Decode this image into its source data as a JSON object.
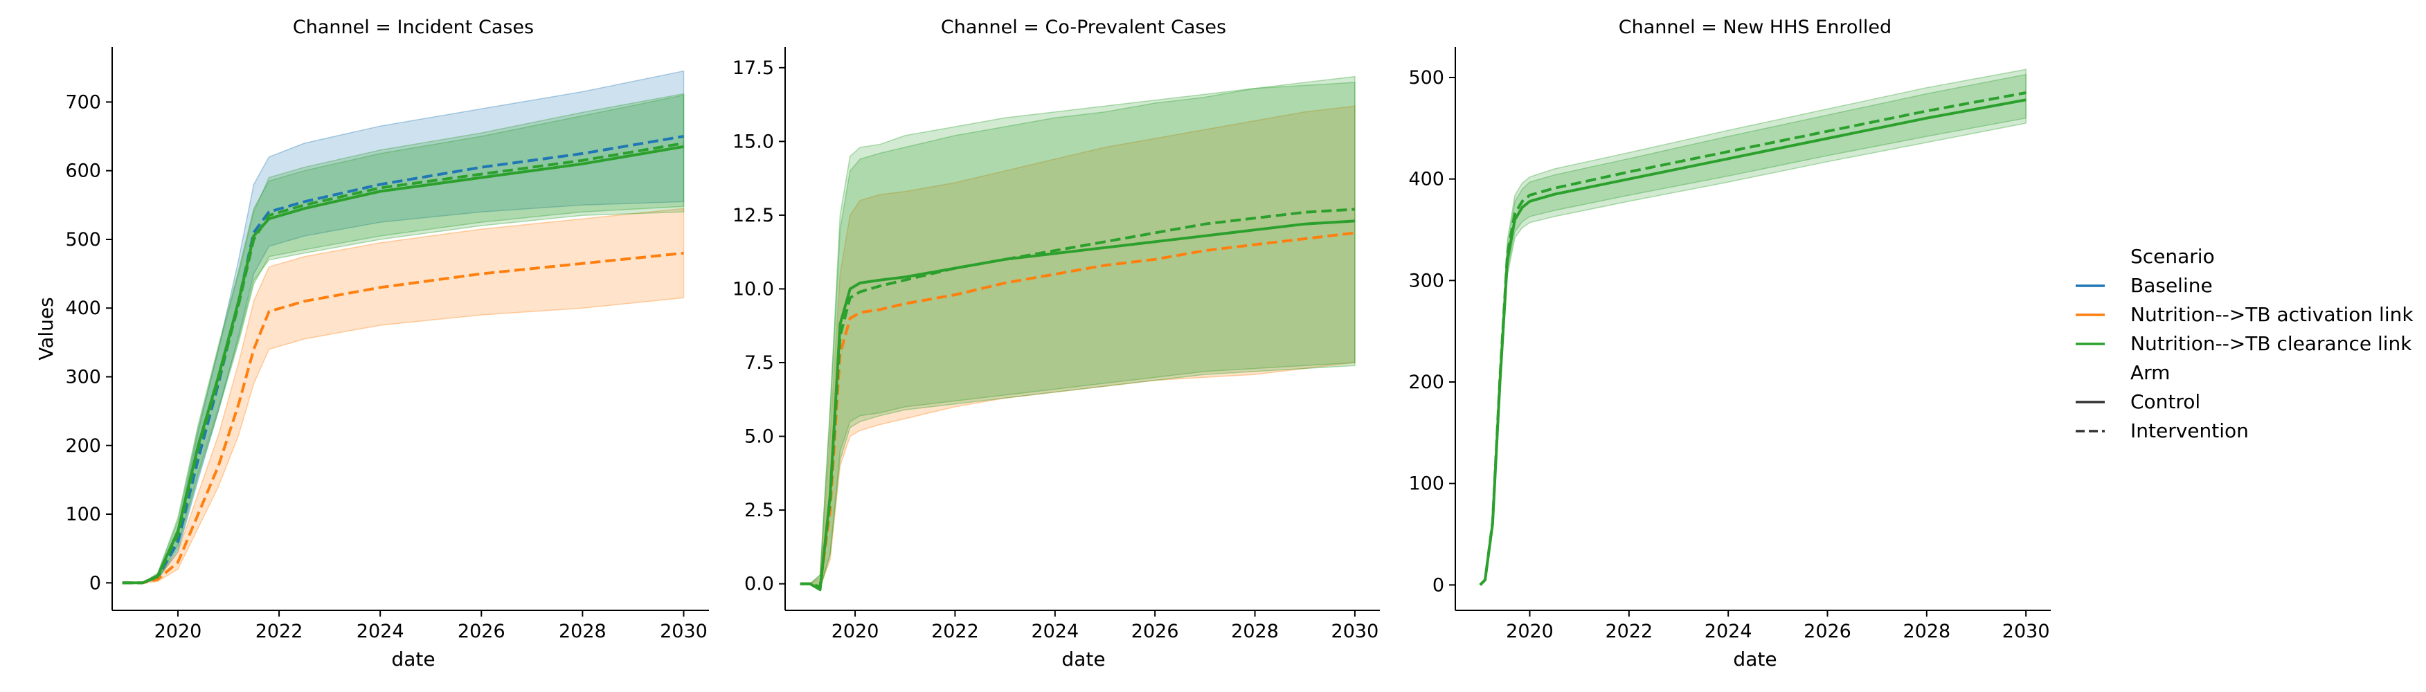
{
  "figure": {
    "legend": {
      "scenario_title": "Scenario",
      "scenario_items": [
        {
          "label": "Baseline",
          "color": "#1f77b4"
        },
        {
          "label": "Nutrition-->TB activation link",
          "color": "#ff7f0e"
        },
        {
          "label": "Nutrition-->TB clearance link",
          "color": "#2ca02c"
        }
      ],
      "arm_title": "Arm",
      "arm_items": [
        {
          "label": "Control",
          "style": "solid"
        },
        {
          "label": "Intervention",
          "style": "dashed"
        }
      ],
      "placement": "right"
    }
  },
  "chart_data": [
    {
      "type": "line",
      "title": "Channel = Incident Cases",
      "xlabel": "date",
      "ylabel": "Values",
      "xlim": [
        2018.7,
        2030.5
      ],
      "ylim": [
        -40,
        780
      ],
      "xticks": [
        2020,
        2022,
        2024,
        2026,
        2028,
        2030
      ],
      "yticks": [
        0,
        100,
        200,
        300,
        400,
        500,
        600,
        700
      ],
      "grid": false,
      "series": [
        {
          "name": "Baseline",
          "arm": "Intervention",
          "color": "#1f77b4",
          "dashed": true,
          "x": [
            2018.9,
            2019.3,
            2019.6,
            2020.0,
            2020.4,
            2020.8,
            2021.2,
            2021.5,
            2021.8,
            2022.5,
            2024,
            2026,
            2028,
            2030
          ],
          "y": [
            0,
            0,
            8,
            60,
            180,
            290,
            410,
            510,
            540,
            555,
            580,
            605,
            625,
            650
          ],
          "lower": [
            0,
            0,
            5,
            45,
            150,
            250,
            360,
            450,
            490,
            505,
            525,
            540,
            550,
            555
          ],
          "upper": [
            0,
            0,
            12,
            80,
            220,
            340,
            470,
            580,
            620,
            640,
            665,
            690,
            715,
            745
          ]
        },
        {
          "name": "Nutrition-->TB activation link",
          "arm": "Intervention",
          "color": "#ff7f0e",
          "dashed": true,
          "x": [
            2018.9,
            2019.3,
            2019.6,
            2020.0,
            2020.4,
            2020.8,
            2021.2,
            2021.5,
            2021.8,
            2022.5,
            2024,
            2026,
            2028,
            2030
          ],
          "y": [
            0,
            0,
            5,
            30,
            100,
            170,
            260,
            340,
            395,
            410,
            430,
            450,
            465,
            480
          ],
          "lower": [
            0,
            0,
            2,
            20,
            80,
            140,
            215,
            290,
            340,
            355,
            375,
            390,
            400,
            415
          ],
          "upper": [
            0,
            0,
            8,
            45,
            130,
            215,
            320,
            410,
            460,
            475,
            495,
            515,
            530,
            545
          ]
        },
        {
          "name": "Nutrition-->TB clearance link",
          "arm": "Control",
          "color": "#2ca02c",
          "dashed": false,
          "x": [
            2018.9,
            2019.3,
            2019.6,
            2020.0,
            2020.4,
            2020.8,
            2021.2,
            2021.5,
            2021.8,
            2022.5,
            2024,
            2026,
            2028,
            2030
          ],
          "y": [
            0,
            0,
            10,
            75,
            200,
            300,
            410,
            505,
            530,
            545,
            570,
            590,
            610,
            635
          ],
          "lower": [
            0,
            0,
            6,
            55,
            160,
            255,
            355,
            440,
            470,
            480,
            500,
            520,
            535,
            540
          ],
          "upper": [
            0,
            0,
            14,
            95,
            230,
            345,
            455,
            545,
            585,
            600,
            625,
            650,
            680,
            710
          ]
        },
        {
          "name": "Nutrition-->TB clearance link",
          "arm": "Intervention",
          "color": "#2ca02c",
          "dashed": true,
          "x": [
            2018.9,
            2019.3,
            2019.6,
            2020.0,
            2020.4,
            2020.8,
            2021.2,
            2021.5,
            2021.8,
            2022.5,
            2024,
            2026,
            2028,
            2030
          ],
          "y": [
            0,
            0,
            9,
            70,
            195,
            295,
            405,
            500,
            535,
            550,
            575,
            595,
            615,
            640
          ],
          "lower": [
            0,
            0,
            5,
            50,
            155,
            250,
            350,
            435,
            475,
            485,
            505,
            525,
            540,
            548
          ],
          "upper": [
            0,
            0,
            13,
            90,
            225,
            340,
            450,
            540,
            590,
            605,
            630,
            655,
            685,
            712
          ]
        }
      ]
    },
    {
      "type": "line",
      "title": "Channel = Co-Prevalent Cases",
      "xlabel": "date",
      "ylabel": "",
      "xlim": [
        2018.6,
        2030.5
      ],
      "ylim": [
        -0.9,
        18.2
      ],
      "xticks": [
        2020,
        2022,
        2024,
        2026,
        2028,
        2030
      ],
      "yticks": [
        0.0,
        2.5,
        5.0,
        7.5,
        10.0,
        12.5,
        15.0,
        17.5
      ],
      "grid": false,
      "series": [
        {
          "name": "Nutrition-->TB activation link",
          "arm": "Intervention",
          "color": "#ff7f0e",
          "dashed": true,
          "x": [
            2018.9,
            2019.1,
            2019.3,
            2019.5,
            2019.7,
            2019.9,
            2020.1,
            2020.5,
            2021,
            2022,
            2023,
            2024,
            2025,
            2026,
            2027,
            2028,
            2029,
            2030
          ],
          "y": [
            0,
            0,
            -0.1,
            2.5,
            7.8,
            9.0,
            9.2,
            9.3,
            9.5,
            9.8,
            10.2,
            10.5,
            10.8,
            11.0,
            11.3,
            11.5,
            11.7,
            11.9
          ],
          "lower": [
            0,
            0,
            -0.1,
            0.8,
            4.0,
            5.0,
            5.2,
            5.4,
            5.6,
            6.0,
            6.3,
            6.5,
            6.7,
            6.9,
            7.0,
            7.1,
            7.3,
            7.5
          ],
          "upper": [
            0,
            0,
            0.2,
            5.0,
            10.5,
            12.5,
            13.0,
            13.2,
            13.3,
            13.6,
            14.0,
            14.4,
            14.8,
            15.1,
            15.4,
            15.7,
            16.0,
            16.2
          ]
        },
        {
          "name": "Nutrition-->TB clearance link",
          "arm": "Control",
          "color": "#2ca02c",
          "dashed": false,
          "x": [
            2018.9,
            2019.1,
            2019.3,
            2019.5,
            2019.7,
            2019.9,
            2020.1,
            2020.5,
            2021,
            2022,
            2023,
            2024,
            2025,
            2026,
            2027,
            2028,
            2029,
            2030
          ],
          "y": [
            0,
            0,
            -0.2,
            3.0,
            8.8,
            10.0,
            10.2,
            10.3,
            10.4,
            10.7,
            11.0,
            11.2,
            11.4,
            11.6,
            11.8,
            12.0,
            12.2,
            12.3
          ],
          "lower": [
            0,
            0,
            -0.2,
            1.0,
            4.5,
            5.5,
            5.7,
            5.8,
            6.0,
            6.2,
            6.4,
            6.6,
            6.8,
            7.0,
            7.2,
            7.3,
            7.4,
            7.5
          ],
          "upper": [
            0,
            0,
            0.3,
            6.0,
            12.5,
            14.5,
            14.8,
            14.9,
            15.2,
            15.5,
            15.8,
            16.0,
            16.2,
            16.4,
            16.6,
            16.8,
            17.0,
            17.2
          ]
        },
        {
          "name": "Nutrition-->TB clearance link",
          "arm": "Intervention",
          "color": "#2ca02c",
          "dashed": true,
          "x": [
            2018.9,
            2019.1,
            2019.3,
            2019.5,
            2019.7,
            2019.9,
            2020.1,
            2020.5,
            2021,
            2022,
            2023,
            2024,
            2025,
            2026,
            2027,
            2028,
            2029,
            2030
          ],
          "y": [
            0,
            0,
            -0.1,
            2.8,
            8.4,
            9.7,
            9.9,
            10.1,
            10.3,
            10.7,
            11.0,
            11.3,
            11.6,
            11.9,
            12.2,
            12.4,
            12.6,
            12.7
          ],
          "lower": [
            0,
            0,
            -0.1,
            1.0,
            4.2,
            5.3,
            5.5,
            5.7,
            5.9,
            6.1,
            6.3,
            6.5,
            6.7,
            6.9,
            7.1,
            7.2,
            7.3,
            7.4
          ],
          "upper": [
            0,
            0,
            0.3,
            5.8,
            12.0,
            14.0,
            14.4,
            14.6,
            14.8,
            15.2,
            15.5,
            15.8,
            16.0,
            16.3,
            16.5,
            16.8,
            16.9,
            17.0
          ]
        }
      ]
    },
    {
      "type": "line",
      "title": "Channel = New HHS Enrolled",
      "xlabel": "date",
      "ylabel": "",
      "xlim": [
        2018.5,
        2030.5
      ],
      "ylim": [
        -25,
        530
      ],
      "xticks": [
        2020,
        2022,
        2024,
        2026,
        2028,
        2030
      ],
      "yticks": [
        0,
        100,
        200,
        300,
        400,
        500
      ],
      "grid": false,
      "series": [
        {
          "name": "Nutrition-->TB clearance link",
          "arm": "Control",
          "color": "#2ca02c",
          "dashed": false,
          "x": [
            2019.0,
            2019.1,
            2019.25,
            2019.4,
            2019.55,
            2019.7,
            2019.85,
            2020.0,
            2020.5,
            2022,
            2024,
            2026,
            2028,
            2030
          ],
          "y": [
            0,
            5,
            60,
            200,
            320,
            360,
            372,
            378,
            385,
            400,
            420,
            440,
            460,
            478
          ],
          "lower": [
            0,
            4,
            55,
            190,
            305,
            342,
            352,
            357,
            363,
            378,
            397,
            417,
            436,
            455
          ],
          "upper": [
            0,
            6,
            65,
            212,
            333,
            378,
            390,
            397,
            404,
            420,
            442,
            463,
            484,
            503
          ]
        },
        {
          "name": "Nutrition-->TB clearance link",
          "arm": "Intervention",
          "color": "#2ca02c",
          "dashed": true,
          "x": [
            2019.0,
            2019.1,
            2019.25,
            2019.4,
            2019.55,
            2019.7,
            2019.85,
            2020.0,
            2020.5,
            2022,
            2024,
            2026,
            2028,
            2030
          ],
          "y": [
            0,
            5,
            62,
            205,
            326,
            366,
            378,
            384,
            391,
            407,
            427,
            447,
            467,
            485
          ],
          "lower": [
            0,
            4,
            57,
            195,
            310,
            348,
            358,
            363,
            369,
            384,
            403,
            423,
            442,
            460
          ],
          "upper": [
            0,
            6,
            67,
            216,
            340,
            384,
            396,
            402,
            410,
            426,
            448,
            469,
            490,
            508
          ]
        }
      ]
    }
  ]
}
